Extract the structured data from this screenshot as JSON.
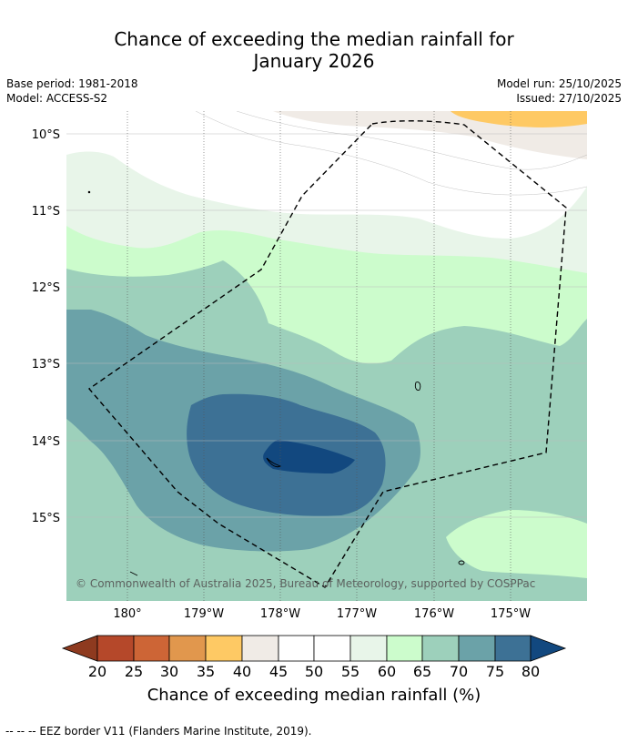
{
  "title_line1": "Chance of exceeding the median rainfall for",
  "title_line2": "January 2026",
  "base_period": "Base period: 1981-2018",
  "model": "Model: ACCESS-S2",
  "model_run": "Model run: 25/10/2025",
  "issued": "Issued: 27/10/2025",
  "copyright": "© Commonwealth of Australia 2025, Bureau of Meteorology, supported by COSPPac",
  "lat_labels": [
    "10°S",
    "11°S",
    "12°S",
    "13°S",
    "14°S",
    "15°S"
  ],
  "lon_labels": [
    "180°",
    "179°W",
    "178°W",
    "177°W",
    "176°W",
    "175°W"
  ],
  "colorbar": {
    "label": "Chance of exceeding median rainfall (%)",
    "ticks": [
      "20",
      "25",
      "30",
      "35",
      "40",
      "45",
      "50",
      "55",
      "60",
      "65",
      "70",
      "75",
      "80"
    ],
    "colors": {
      "below_20": "#8e3a1f",
      "c20_25": "#b5482a",
      "c25_30": "#cd6536",
      "c30_35": "#e1974d",
      "c35_40": "#fec964",
      "c40_45": "#f0ebe6",
      "c45_55": "#ffffff",
      "c55_60": "#e8f5e9",
      "c60_65": "#ccfccc",
      "c65_70": "#9dd0bb",
      "c70_75": "#6ba2a8",
      "c75_80": "#3d7195",
      "above_80": "#12487f"
    }
  },
  "footnote": "--  --  -- EEZ border V11 (Flanders Marine Institute, 2019)."
}
